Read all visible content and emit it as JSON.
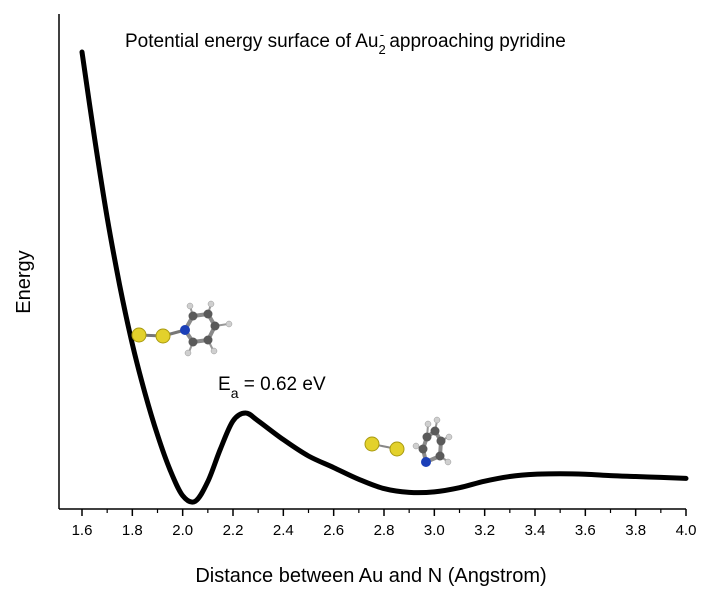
{
  "chart_data": {
    "type": "line",
    "title": {
      "prefix": "Potential energy surface of Au",
      "subscript": "2",
      "superscript": "-",
      "suffix": " approaching pyridine"
    },
    "xlabel": "Distance between Au and N (Angstrom)",
    "ylabel": "Energy",
    "xlim": [
      1.55,
      4.0
    ],
    "ylim": [
      0,
      100
    ],
    "x_ticks": [
      "1.6",
      "1.8",
      "2.0",
      "2.2",
      "2.4",
      "2.6",
      "2.8",
      "3.0",
      "3.2",
      "3.4",
      "3.6",
      "3.8",
      "4.0"
    ],
    "grid": false,
    "series": [
      {
        "color": "#000000",
        "points": [
          [
            1.6,
            98.5
          ],
          [
            1.65,
            80.0
          ],
          [
            1.7,
            63.0
          ],
          [
            1.75,
            48.5
          ],
          [
            1.8,
            36.0
          ],
          [
            1.85,
            25.5
          ],
          [
            1.9,
            16.5
          ],
          [
            1.95,
            9.0
          ],
          [
            2.0,
            3.5
          ],
          [
            2.05,
            2.3
          ],
          [
            2.1,
            6.5
          ],
          [
            2.15,
            13.5
          ],
          [
            2.2,
            19.5
          ],
          [
            2.25,
            21.2
          ],
          [
            2.3,
            19.5
          ],
          [
            2.4,
            15.5
          ],
          [
            2.5,
            12.0
          ],
          [
            2.6,
            9.5
          ],
          [
            2.7,
            7.0
          ],
          [
            2.8,
            5.0
          ],
          [
            2.9,
            4.2
          ],
          [
            3.0,
            4.3
          ],
          [
            3.1,
            5.2
          ],
          [
            3.2,
            6.6
          ],
          [
            3.3,
            7.6
          ],
          [
            3.4,
            8.1
          ],
          [
            3.5,
            8.2
          ],
          [
            3.6,
            8.1
          ],
          [
            3.7,
            7.8
          ],
          [
            3.8,
            7.6
          ],
          [
            3.9,
            7.4
          ],
          [
            4.0,
            7.2
          ]
        ]
      }
    ],
    "annotations": {
      "ea_main": "E",
      "ea_sub": "a",
      "ea_value": " = 0.62 eV"
    }
  }
}
